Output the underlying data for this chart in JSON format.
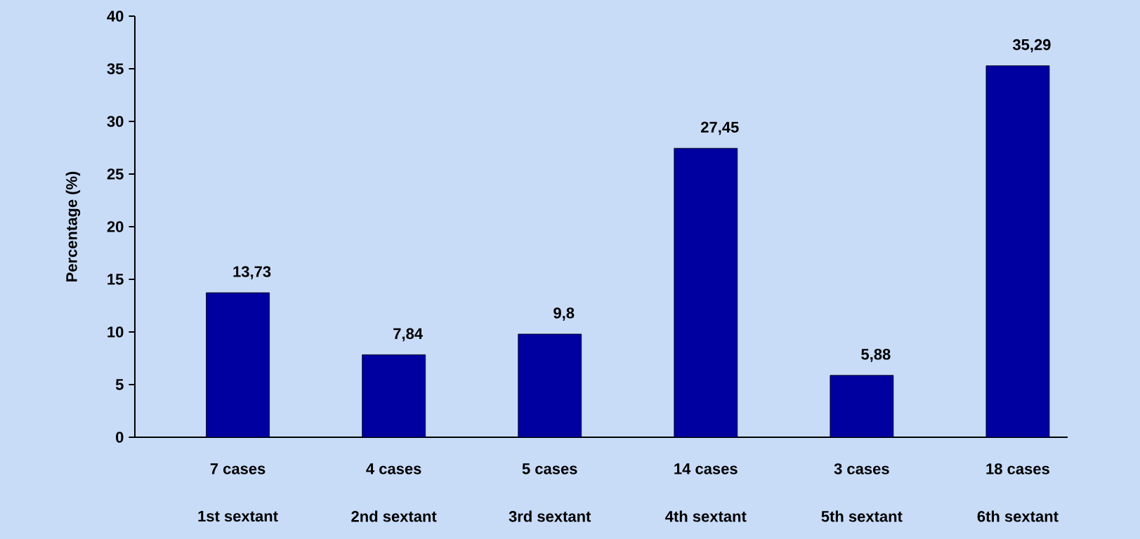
{
  "chart_data": {
    "type": "bar",
    "ylabel": "Percentage (%)",
    "categories": [
      "1st sextant",
      "2nd sextant",
      "3rd sextant",
      "4th sextant",
      "5th sextant",
      "6th sextant"
    ],
    "values": [
      13.73,
      7.84,
      9.8,
      27.45,
      5.88,
      35.29
    ],
    "value_labels": [
      "13,73",
      "7,84",
      "9,8",
      "27,45",
      "5,88",
      "35,29"
    ],
    "color": "#0000a0",
    "ylim": [
      0,
      40
    ],
    "yticks": [
      0,
      5,
      10,
      15,
      20,
      25,
      30,
      35,
      40
    ],
    "annotations": [
      "7 cases",
      "4 cases",
      "5 cases",
      "14 cases",
      "3 cases",
      "18 cases"
    ]
  }
}
